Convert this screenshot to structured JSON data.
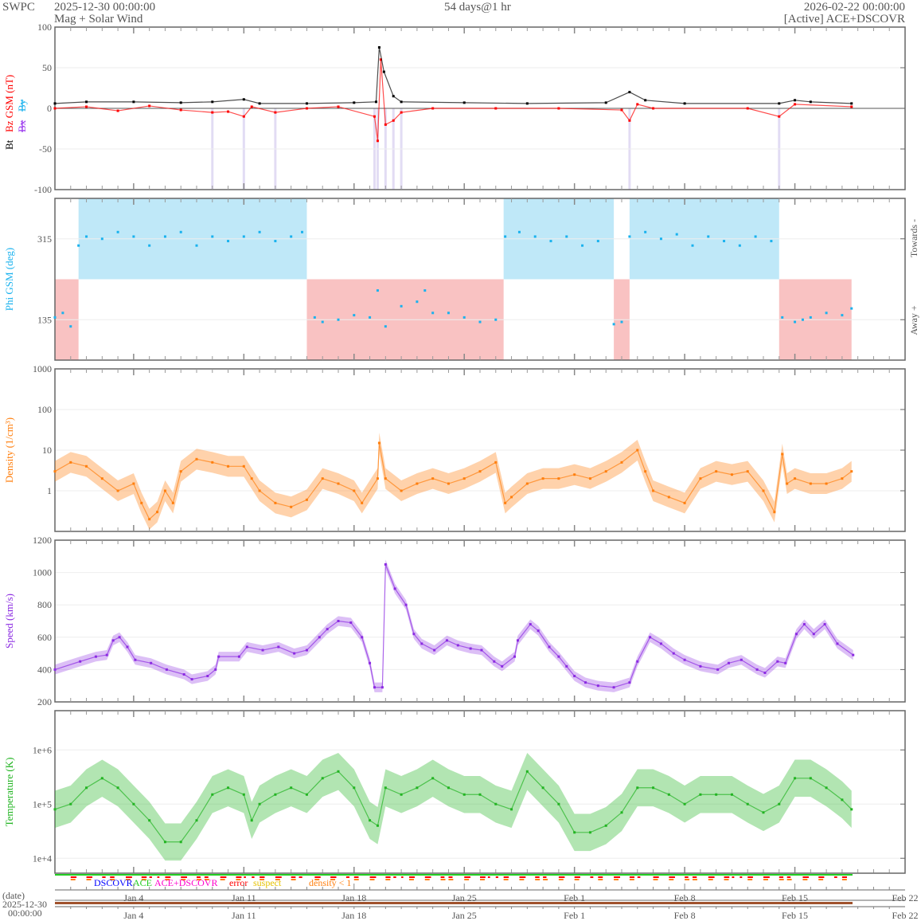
{
  "header": {
    "org": "SWPC",
    "start": "2025-12-30 00:00:00",
    "title": "Mag + Solar Wind",
    "span": "54 days@1 hr",
    "end": "2026-02-22 00:00:00",
    "source": "[Active] ACE+DSCOVR"
  },
  "colors": {
    "bt": "#000000",
    "bz": "#ff0000",
    "bx": "#9933ee",
    "by": "#1ab2ee",
    "phi": "#1ab2ee",
    "towards_band": "#bfe8f8",
    "away_band": "#f9c2c2",
    "density": "#ff7f0e",
    "speed": "#8b2be2",
    "temperature": "#22b422",
    "dscovr": "#0000ff",
    "ace": "#22cc22",
    "ace_dscovr": "#ff00cc",
    "error": "#ff0000",
    "suspect": "#e6c200",
    "density_lt1": "#ff7f0e"
  },
  "legend": {
    "dscovr": "DSCOVR",
    "ace": "ACE",
    "ace_dscovr": "ACE+DSCOVR",
    "error": "error",
    "suspect": "suspect",
    "density_lt1": "density < 1"
  },
  "date_axis": {
    "label": "(date)",
    "origin_date": "2025-12-30",
    "origin_time": "00:00:00",
    "ticks": [
      {
        "day": 5,
        "label": "Jan 4"
      },
      {
        "day": 12,
        "label": "Jan 11"
      },
      {
        "day": 19,
        "label": "Jan 18"
      },
      {
        "day": 26,
        "label": "Jan 25"
      },
      {
        "day": 33,
        "label": "Feb 1"
      },
      {
        "day": 40,
        "label": "Feb 8"
      },
      {
        "day": 47,
        "label": "Feb 15"
      },
      {
        "day": 54,
        "label": "Feb 22"
      }
    ],
    "range_days": [
      0,
      54
    ]
  },
  "chart_data": [
    {
      "type": "line",
      "name": "mag",
      "ylabel_parts": [
        "Bt",
        "Bz GSM (nT)",
        "Bx",
        "By"
      ],
      "ylim": [
        -100,
        100
      ],
      "yticks": [
        100,
        50,
        0,
        -50,
        -100
      ],
      "series": [
        {
          "name": "Bt",
          "points": [
            [
              0,
              6
            ],
            [
              2,
              8
            ],
            [
              5,
              8
            ],
            [
              8,
              7
            ],
            [
              10,
              8
            ],
            [
              12,
              11
            ],
            [
              13,
              6
            ],
            [
              16,
              6
            ],
            [
              19,
              7
            ],
            [
              20.4,
              8
            ],
            [
              20.6,
              75
            ],
            [
              20.9,
              45
            ],
            [
              21.5,
              15
            ],
            [
              22,
              8
            ],
            [
              26,
              7
            ],
            [
              30,
              6
            ],
            [
              35,
              7
            ],
            [
              36.5,
              20
            ],
            [
              37.5,
              10
            ],
            [
              40,
              6
            ],
            [
              46,
              6
            ],
            [
              47,
              10
            ],
            [
              48,
              8
            ],
            [
              50.6,
              6
            ]
          ]
        },
        {
          "name": "Bz",
          "points": [
            [
              0,
              0
            ],
            [
              2,
              2
            ],
            [
              4,
              -3
            ],
            [
              6,
              3
            ],
            [
              8,
              -2
            ],
            [
              10,
              -5
            ],
            [
              11,
              -4
            ],
            [
              12,
              -10
            ],
            [
              12.5,
              2
            ],
            [
              14,
              -5
            ],
            [
              16,
              0
            ],
            [
              18,
              2
            ],
            [
              20.3,
              -10
            ],
            [
              20.5,
              -40
            ],
            [
              20.7,
              60
            ],
            [
              21,
              -20
            ],
            [
              21.5,
              -15
            ],
            [
              22,
              -5
            ],
            [
              24,
              0
            ],
            [
              28,
              0
            ],
            [
              32,
              0
            ],
            [
              36,
              -2
            ],
            [
              36.5,
              -15
            ],
            [
              37,
              5
            ],
            [
              38,
              0
            ],
            [
              44,
              0
            ],
            [
              46,
              -10
            ],
            [
              47,
              5
            ],
            [
              50.6,
              2
            ]
          ]
        }
      ]
    },
    {
      "type": "scatter",
      "name": "phi",
      "ylabel": "Phi GSM (deg)",
      "ylim": [
        45,
        405
      ],
      "yticks": [
        315,
        135
      ],
      "right_labels": [
        "Towards -",
        "Away +"
      ],
      "sectors": [
        {
          "start": 0,
          "end": 1.5,
          "polarity": "away"
        },
        {
          "start": 1.5,
          "end": 16,
          "polarity": "towards"
        },
        {
          "start": 16,
          "end": 28.5,
          "polarity": "away"
        },
        {
          "start": 28.5,
          "end": 35.5,
          "polarity": "towards"
        },
        {
          "start": 35.5,
          "end": 36.5,
          "polarity": "away"
        },
        {
          "start": 36.5,
          "end": 46,
          "polarity": "towards"
        },
        {
          "start": 46,
          "end": 50.6,
          "polarity": "away"
        }
      ],
      "points": [
        [
          0,
          140
        ],
        [
          0.5,
          150
        ],
        [
          1,
          120
        ],
        [
          1.5,
          300
        ],
        [
          2,
          320
        ],
        [
          3,
          315
        ],
        [
          4,
          330
        ],
        [
          5,
          320
        ],
        [
          6,
          300
        ],
        [
          7,
          320
        ],
        [
          8,
          330
        ],
        [
          9,
          300
        ],
        [
          10,
          320
        ],
        [
          11,
          310
        ],
        [
          12,
          320
        ],
        [
          13,
          330
        ],
        [
          14,
          310
        ],
        [
          15,
          320
        ],
        [
          15.7,
          330
        ],
        [
          16.5,
          140
        ],
        [
          17,
          130
        ],
        [
          18,
          135
        ],
        [
          19,
          145
        ],
        [
          20,
          140
        ],
        [
          20.5,
          200
        ],
        [
          21,
          120
        ],
        [
          22,
          165
        ],
        [
          23,
          175
        ],
        [
          23.5,
          200
        ],
        [
          24,
          150
        ],
        [
          25,
          150
        ],
        [
          26,
          140
        ],
        [
          27,
          130
        ],
        [
          28,
          135
        ],
        [
          28.6,
          320
        ],
        [
          29.5,
          330
        ],
        [
          30.5,
          320
        ],
        [
          31.5,
          310
        ],
        [
          32.5,
          320
        ],
        [
          33.5,
          300
        ],
        [
          34.5,
          310
        ],
        [
          35.5,
          125
        ],
        [
          36,
          130
        ],
        [
          36.5,
          320
        ],
        [
          37.5,
          330
        ],
        [
          38.5,
          315
        ],
        [
          39.5,
          325
        ],
        [
          40.5,
          300
        ],
        [
          41.5,
          320
        ],
        [
          42.5,
          310
        ],
        [
          43.5,
          300
        ],
        [
          44.5,
          320
        ],
        [
          45.5,
          310
        ],
        [
          46.2,
          140
        ],
        [
          47,
          130
        ],
        [
          47.5,
          135
        ],
        [
          48,
          140
        ],
        [
          49,
          150
        ],
        [
          50,
          145
        ],
        [
          50.6,
          160
        ]
      ]
    },
    {
      "type": "scatter",
      "name": "density",
      "scale": "log",
      "ylabel": "Density (1/cm³)",
      "ylim": [
        0.1,
        1000
      ],
      "yticks": [
        "1000",
        "100",
        "10",
        "1"
      ],
      "points": [
        [
          0,
          3
        ],
        [
          1,
          5
        ],
        [
          2,
          4
        ],
        [
          3,
          2
        ],
        [
          4,
          1
        ],
        [
          5,
          1.5
        ],
        [
          5.5,
          0.5
        ],
        [
          6,
          0.2
        ],
        [
          6.5,
          0.3
        ],
        [
          7,
          1
        ],
        [
          7.5,
          0.5
        ],
        [
          8,
          3
        ],
        [
          9,
          6
        ],
        [
          10,
          5
        ],
        [
          11,
          4
        ],
        [
          12,
          4
        ],
        [
          12.5,
          2
        ],
        [
          13,
          1
        ],
        [
          14,
          0.5
        ],
        [
          15,
          0.4
        ],
        [
          16,
          0.6
        ],
        [
          17,
          2
        ],
        [
          18,
          1.5
        ],
        [
          19,
          1
        ],
        [
          19.5,
          0.5
        ],
        [
          20.5,
          2
        ],
        [
          20.6,
          15
        ],
        [
          21,
          2
        ],
        [
          22,
          1
        ],
        [
          23,
          1.5
        ],
        [
          24,
          2
        ],
        [
          25,
          1.5
        ],
        [
          26,
          2
        ],
        [
          27,
          3
        ],
        [
          28,
          5
        ],
        [
          28.6,
          0.5
        ],
        [
          29,
          0.7
        ],
        [
          30,
          1.5
        ],
        [
          31,
          2
        ],
        [
          32,
          2
        ],
        [
          33,
          2.5
        ],
        [
          34,
          2
        ],
        [
          35,
          3
        ],
        [
          36,
          5
        ],
        [
          37,
          10
        ],
        [
          37.5,
          3
        ],
        [
          38,
          1
        ],
        [
          39,
          0.7
        ],
        [
          40,
          0.5
        ],
        [
          41,
          2
        ],
        [
          42,
          3
        ],
        [
          43,
          2.5
        ],
        [
          44,
          3
        ],
        [
          45,
          1
        ],
        [
          45.7,
          0.3
        ],
        [
          46.2,
          8
        ],
        [
          46.5,
          1.5
        ],
        [
          47,
          2
        ],
        [
          48,
          1.5
        ],
        [
          49,
          1.5
        ],
        [
          50,
          2
        ],
        [
          50.6,
          3
        ]
      ]
    },
    {
      "type": "scatter",
      "name": "speed",
      "ylabel": "Speed (km/s)",
      "ylim": [
        200,
        1200
      ],
      "yticks": [
        1200,
        1000,
        800,
        600,
        400,
        200
      ],
      "points": [
        [
          0,
          400
        ],
        [
          1.6,
          450
        ],
        [
          2.6,
          480
        ],
        [
          3.3,
          490
        ],
        [
          3.7,
          580
        ],
        [
          4.1,
          600
        ],
        [
          4.6,
          540
        ],
        [
          5.1,
          460
        ],
        [
          6.1,
          440
        ],
        [
          7.1,
          400
        ],
        [
          8.2,
          370
        ],
        [
          8.7,
          340
        ],
        [
          9.7,
          360
        ],
        [
          10.2,
          400
        ],
        [
          10.4,
          480
        ],
        [
          11.7,
          480
        ],
        [
          12.2,
          540
        ],
        [
          13.2,
          520
        ],
        [
          14.2,
          540
        ],
        [
          15.2,
          500
        ],
        [
          16,
          520
        ],
        [
          16.8,
          600
        ],
        [
          17.3,
          650
        ],
        [
          18,
          700
        ],
        [
          18.8,
          690
        ],
        [
          19.5,
          600
        ],
        [
          20,
          440
        ],
        [
          20.3,
          290
        ],
        [
          20.8,
          290
        ],
        [
          21,
          1050
        ],
        [
          21.6,
          900
        ],
        [
          22.3,
          800
        ],
        [
          22.8,
          620
        ],
        [
          23.3,
          560
        ],
        [
          24.1,
          520
        ],
        [
          24.9,
          580
        ],
        [
          25.6,
          550
        ],
        [
          26.4,
          530
        ],
        [
          27.1,
          520
        ],
        [
          27.9,
          450
        ],
        [
          28.4,
          420
        ],
        [
          29.2,
          480
        ],
        [
          29.4,
          580
        ],
        [
          30.2,
          680
        ],
        [
          30.7,
          640
        ],
        [
          31.4,
          540
        ],
        [
          32,
          480
        ],
        [
          32.5,
          420
        ],
        [
          33,
          360
        ],
        [
          33.7,
          320
        ],
        [
          34.5,
          300
        ],
        [
          35.5,
          290
        ],
        [
          36.5,
          320
        ],
        [
          37,
          450
        ],
        [
          37.8,
          600
        ],
        [
          38.5,
          560
        ],
        [
          39.3,
          500
        ],
        [
          40,
          460
        ],
        [
          41,
          420
        ],
        [
          42.1,
          400
        ],
        [
          42.8,
          440
        ],
        [
          43.6,
          460
        ],
        [
          44.6,
          400
        ],
        [
          45.1,
          380
        ],
        [
          45.9,
          450
        ],
        [
          46.4,
          440
        ],
        [
          47.1,
          620
        ],
        [
          47.6,
          680
        ],
        [
          48.2,
          620
        ],
        [
          48.9,
          680
        ],
        [
          49.7,
          560
        ],
        [
          50.7,
          490
        ]
      ]
    },
    {
      "type": "scatter",
      "name": "temperature",
      "scale": "log",
      "ylabel": "Temperature (K)",
      "ylim": [
        5300,
        5300000
      ],
      "yticks": [
        "1e+6",
        "1e+5",
        "1e+4"
      ],
      "points": [
        [
          0,
          80000
        ],
        [
          1,
          100000
        ],
        [
          2,
          200000
        ],
        [
          3,
          300000
        ],
        [
          4,
          200000
        ],
        [
          5,
          100000
        ],
        [
          6,
          50000
        ],
        [
          7,
          20000
        ],
        [
          8,
          20000
        ],
        [
          9,
          50000
        ],
        [
          10,
          150000
        ],
        [
          11,
          200000
        ],
        [
          12,
          150000
        ],
        [
          12.5,
          50000
        ],
        [
          13,
          100000
        ],
        [
          14,
          150000
        ],
        [
          15,
          200000
        ],
        [
          16,
          150000
        ],
        [
          17,
          300000
        ],
        [
          18,
          400000
        ],
        [
          19,
          200000
        ],
        [
          20,
          50000
        ],
        [
          20.5,
          40000
        ],
        [
          21,
          200000
        ],
        [
          22,
          150000
        ],
        [
          23,
          200000
        ],
        [
          24,
          300000
        ],
        [
          25,
          200000
        ],
        [
          26,
          150000
        ],
        [
          27,
          150000
        ],
        [
          28,
          100000
        ],
        [
          29,
          80000
        ],
        [
          30,
          400000
        ],
        [
          31,
          200000
        ],
        [
          32,
          100000
        ],
        [
          33,
          30000
        ],
        [
          34,
          30000
        ],
        [
          35,
          40000
        ],
        [
          36,
          70000
        ],
        [
          37,
          200000
        ],
        [
          38,
          200000
        ],
        [
          39,
          150000
        ],
        [
          40,
          100000
        ],
        [
          41,
          150000
        ],
        [
          42,
          150000
        ],
        [
          43,
          150000
        ],
        [
          44,
          100000
        ],
        [
          45,
          70000
        ],
        [
          46,
          100000
        ],
        [
          47,
          300000
        ],
        [
          48,
          300000
        ],
        [
          49,
          200000
        ],
        [
          50,
          120000
        ],
        [
          50.6,
          80000
        ]
      ]
    }
  ]
}
